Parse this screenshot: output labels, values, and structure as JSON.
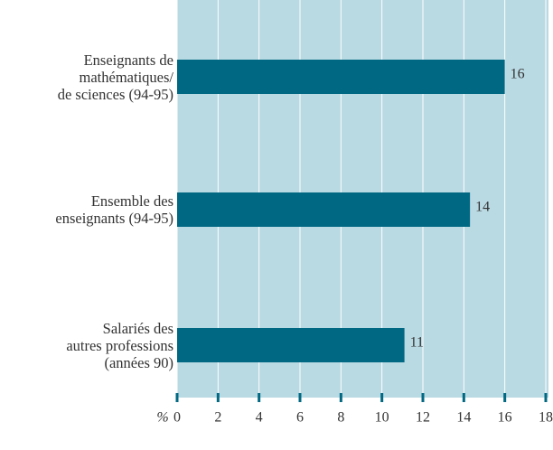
{
  "chart_data": {
    "type": "barh",
    "categories": [
      "Enseignants de\nmathématiques/\nde sciences (94-95)",
      "Ensemble des\nenseignants (94-95)",
      "Salariés des\nautres professions\n(années 90)"
    ],
    "values": [
      16,
      14.3,
      11.1
    ],
    "value_labels": [
      "16",
      "14",
      "11"
    ],
    "color": "#006882",
    "background": "#b9d9e3",
    "xlabel": "%",
    "xlim": [
      0,
      18
    ],
    "xticks": [
      0,
      2,
      4,
      6,
      8,
      10,
      12,
      14,
      16,
      18
    ],
    "grid": true
  }
}
